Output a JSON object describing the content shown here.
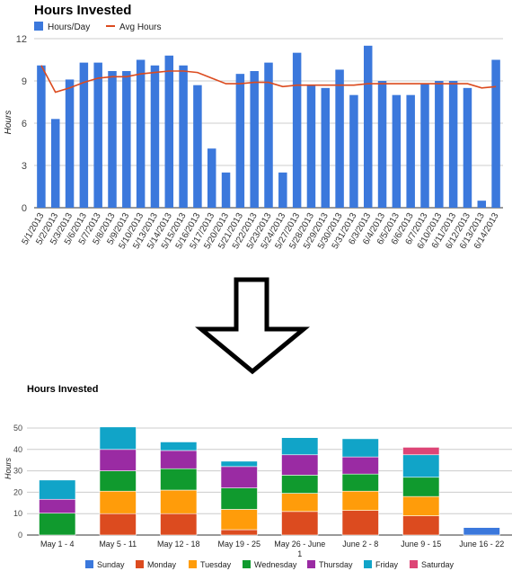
{
  "chart_data": [
    {
      "type": "bar",
      "title": "Hours Invested",
      "ylabel": "Hours",
      "xlabel": "",
      "ylim": [
        0,
        12
      ],
      "yticks": [
        0,
        3,
        6,
        9,
        12
      ],
      "grid": true,
      "legend_position": "top-left",
      "categories": [
        "5/1/2013",
        "5/2/2013",
        "5/3/2013",
        "5/6/2013",
        "5/7/2013",
        "5/8/2013",
        "5/9/2013",
        "5/10/2013",
        "5/13/2013",
        "5/14/2013",
        "5/15/2013",
        "5/16/2013",
        "5/17/2013",
        "5/20/2013",
        "5/21/2013",
        "5/22/2013",
        "5/23/2013",
        "5/24/2013",
        "5/27/2013",
        "5/28/2013",
        "5/29/2013",
        "5/30/2013",
        "5/31/2013",
        "6/3/2013",
        "6/4/2013",
        "6/5/2013",
        "6/6/2013",
        "6/7/2013",
        "6/10/2013",
        "6/11/2013",
        "6/12/2013",
        "6/13/2013",
        "6/14/2013"
      ],
      "series": [
        {
          "name": "Hours/Day",
          "kind": "bar",
          "color": "#3b78dc",
          "values": [
            10.1,
            6.3,
            9.1,
            10.3,
            10.3,
            9.7,
            9.7,
            10.5,
            10.1,
            10.8,
            10.1,
            8.7,
            4.2,
            2.5,
            9.5,
            9.7,
            10.3,
            2.5,
            11.0,
            8.7,
            8.5,
            9.8,
            8.0,
            11.5,
            9.0,
            8.0,
            8.0,
            8.8,
            9.0,
            9.0,
            8.5,
            0.5,
            10.5
          ]
        },
        {
          "name": "Avg Hours",
          "kind": "line",
          "color": "#dc4b1f",
          "values": [
            10.1,
            8.2,
            8.5,
            8.9,
            9.2,
            9.3,
            9.3,
            9.5,
            9.6,
            9.7,
            9.7,
            9.6,
            9.2,
            8.8,
            8.8,
            8.9,
            8.9,
            8.6,
            8.7,
            8.7,
            8.7,
            8.7,
            8.7,
            8.8,
            8.8,
            8.8,
            8.8,
            8.8,
            8.8,
            8.8,
            8.8,
            8.5,
            8.6
          ]
        }
      ]
    },
    {
      "type": "bar",
      "stacked": true,
      "title": "Hours Invested",
      "ylabel": "Hours",
      "xlabel": "",
      "ylim": [
        0,
        50
      ],
      "yticks": [
        0,
        10,
        20,
        30,
        40,
        50
      ],
      "grid": true,
      "legend_position": "bottom",
      "categories": [
        "May 1 - 4",
        "May 5 - 11",
        "May 12 - 18",
        "May 19 - 25",
        "May 26 - June 1",
        "June 2 - 8",
        "June 9 - 15",
        "June 16 - 22"
      ],
      "category_lines": [
        [
          "May 1 - 4"
        ],
        [
          "May 5 - 11"
        ],
        [
          "May 12 - 18"
        ],
        [
          "May 19 - 25"
        ],
        [
          "May 26 - June",
          "1"
        ],
        [
          "June 2 - 8"
        ],
        [
          "June 9 - 15"
        ],
        [
          "June 16 - 22"
        ]
      ],
      "series": [
        {
          "name": "Sunday",
          "color": "#3b78dc",
          "values": [
            0,
            0,
            0,
            0,
            0,
            0,
            0,
            3.5
          ]
        },
        {
          "name": "Monday",
          "color": "#dc4b1f",
          "values": [
            0,
            10,
            10,
            2.5,
            11,
            11.5,
            9,
            0
          ]
        },
        {
          "name": "Tuesday",
          "color": "#ff9c0a",
          "values": [
            0,
            10.5,
            11,
            9.5,
            8.5,
            9,
            9,
            0
          ]
        },
        {
          "name": "Wednesday",
          "color": "#109a2e",
          "values": [
            10.2,
            9.5,
            10,
            10,
            8.5,
            8,
            9,
            0
          ]
        },
        {
          "name": "Thursday",
          "color": "#9a2ba3",
          "values": [
            6.5,
            10,
            8.5,
            10,
            9.5,
            8,
            0,
            0
          ]
        },
        {
          "name": "Friday",
          "color": "#11a4c8",
          "values": [
            9,
            10.5,
            4,
            2.5,
            8,
            8.5,
            10.5,
            0
          ]
        },
        {
          "name": "Saturday",
          "color": "#dd4576",
          "values": [
            0,
            0,
            0,
            0,
            0,
            0,
            3.5,
            0
          ]
        }
      ]
    }
  ],
  "arrow": {
    "icon": "down-arrow-outline-icon"
  },
  "colors": {
    "grid": "#cccccc",
    "axis": "#333333",
    "text": "#222222",
    "tick": "#444444"
  }
}
